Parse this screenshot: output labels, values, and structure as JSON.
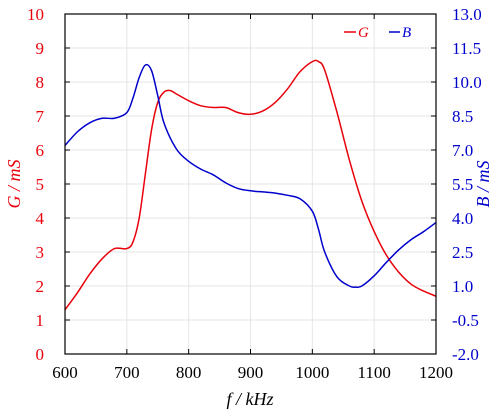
{
  "chart_data": {
    "type": "line",
    "xlabel": "f / kHz",
    "ylabel_left": "G / mS",
    "ylabel_right": "B / mS",
    "xlim": [
      600,
      1200
    ],
    "ylim_left": [
      0,
      10
    ],
    "ylim_right": [
      -2.0,
      13.0
    ],
    "x_ticks": [
      "600",
      "700",
      "800",
      "900",
      "1000",
      "1100",
      "1200"
    ],
    "y_left_ticks": [
      "0",
      "1",
      "2",
      "3",
      "4",
      "5",
      "6",
      "7",
      "8",
      "9",
      "10"
    ],
    "y_right_ticks": [
      "-2.0",
      "-0.5",
      "1.0",
      "2.5",
      "4.0",
      "5.5",
      "7.0",
      "8.5",
      "10.0",
      "11.5",
      "13.0"
    ],
    "grid": true,
    "legend_position": "top-right",
    "colors": {
      "left_axis": "#e8000b",
      "right_axis": "#0000cc"
    },
    "series": [
      {
        "name": "G",
        "axis": "left",
        "color": "#e8000b",
        "x": [
          600,
          620,
          640,
          660,
          680,
          700,
          710,
          720,
          730,
          740,
          750,
          760,
          770,
          780,
          800,
          820,
          840,
          860,
          880,
          900,
          920,
          940,
          960,
          980,
          1000,
          1010,
          1020,
          1040,
          1060,
          1080,
          1100,
          1120,
          1140,
          1160,
          1180,
          1200
        ],
        "y": [
          1.3,
          1.8,
          2.35,
          2.8,
          3.1,
          3.1,
          3.3,
          4.0,
          5.3,
          6.6,
          7.4,
          7.7,
          7.75,
          7.65,
          7.45,
          7.3,
          7.25,
          7.25,
          7.1,
          7.05,
          7.15,
          7.4,
          7.8,
          8.3,
          8.6,
          8.6,
          8.35,
          7.1,
          5.7,
          4.5,
          3.6,
          2.9,
          2.4,
          2.05,
          1.85,
          1.7
        ]
      },
      {
        "name": "B",
        "axis": "right",
        "color": "#0000cc",
        "x": [
          600,
          620,
          640,
          660,
          680,
          700,
          710,
          720,
          730,
          740,
          750,
          760,
          780,
          800,
          820,
          840,
          860,
          880,
          900,
          920,
          940,
          960,
          980,
          1000,
          1010,
          1020,
          1040,
          1060,
          1070,
          1080,
          1100,
          1120,
          1140,
          1160,
          1180,
          1200
        ],
        "y": [
          7.2,
          7.8,
          8.2,
          8.4,
          8.4,
          8.65,
          9.3,
          10.2,
          10.75,
          10.5,
          9.4,
          8.2,
          7.05,
          6.5,
          6.15,
          5.9,
          5.55,
          5.3,
          5.2,
          5.15,
          5.1,
          5.0,
          4.85,
          4.3,
          3.5,
          2.5,
          1.4,
          1.0,
          0.95,
          1.0,
          1.45,
          2.05,
          2.6,
          3.05,
          3.4,
          3.8
        ]
      }
    ]
  }
}
